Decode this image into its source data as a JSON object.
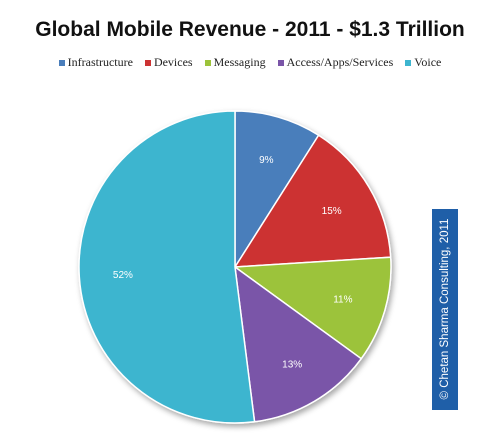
{
  "chart_data": {
    "type": "pie",
    "title": "Global Mobile Revenue - 2011 - $1.3 Trillion",
    "categories": [
      "Infrastructure",
      "Devices",
      "Messaging",
      "Access/Apps/Services",
      "Voice"
    ],
    "values": [
      9,
      15,
      11,
      13,
      52
    ],
    "labels": [
      "9%",
      "15%",
      "11%",
      "13%",
      "52%"
    ],
    "colors": [
      "#4a7ebb",
      "#cc3333",
      "#9cc33a",
      "#7a55a8",
      "#3db5cf"
    ],
    "legend_position": "top"
  },
  "copyright": "© Chetan Sharma Consulting, 2011"
}
